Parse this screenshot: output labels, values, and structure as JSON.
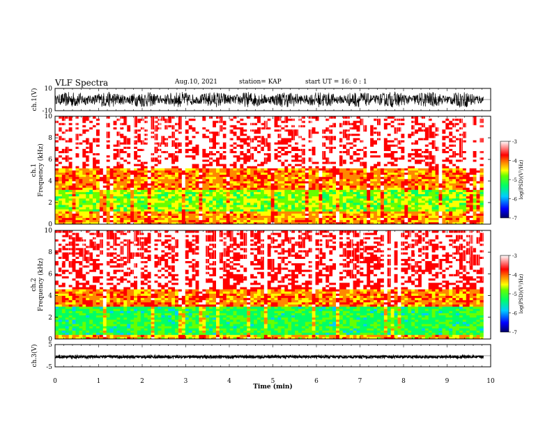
{
  "header": {
    "title": "VLF Spectra",
    "date": "Aug.10, 2021",
    "station": "station= KAP",
    "start": "start  UT  =   16: 0  : 1"
  },
  "chart_data": [
    {
      "type": "line",
      "name": "ch1-waveform",
      "ylabel": "ch.1(V)",
      "ylim": [
        -10,
        10
      ],
      "yticks": [
        "10",
        "-10"
      ],
      "xlim": [
        0,
        10
      ],
      "data_xmax": 9.83,
      "amplitude_range": [
        -8,
        8
      ]
    },
    {
      "type": "heatmap",
      "name": "ch1-spectrogram",
      "ylabel": "ch.1  Frequency  (kHz)",
      "ylim": [
        0,
        10
      ],
      "yticks": [
        "0",
        "2",
        "4",
        "6",
        "8",
        "10"
      ],
      "xlim": [
        0,
        10
      ],
      "data_xmax": 9.83,
      "bands": [
        {
          "from": 0,
          "to": 1.2,
          "level": -4.2
        },
        {
          "from": 1.2,
          "to": 3.2,
          "level": -4.8
        },
        {
          "from": 3.2,
          "to": 5.2,
          "level": -4.1
        },
        {
          "from": 5.2,
          "to": 10,
          "level": -3.3
        }
      ],
      "colorbar": {
        "label": "log(PSD)(V²/Hz)",
        "range": [
          -7,
          -3
        ],
        "ticks": [
          "-3",
          "-4",
          "-5",
          "-6",
          "-7"
        ]
      }
    },
    {
      "type": "heatmap",
      "name": "ch2-spectrogram",
      "ylabel": "ch.2  Frequency  (kHz)",
      "ylim": [
        0,
        10
      ],
      "yticks": [
        "0",
        "2",
        "4",
        "6",
        "8",
        "10"
      ],
      "xlim": [
        0,
        10
      ],
      "data_xmax": 9.83,
      "bands": [
        {
          "from": 0,
          "to": 0.5,
          "level": -4.3
        },
        {
          "from": 0.5,
          "to": 3.0,
          "level": -5.2
        },
        {
          "from": 3.0,
          "to": 4.6,
          "level": -4.1
        },
        {
          "from": 4.6,
          "to": 10,
          "level": -3.4
        }
      ],
      "colorbar": {
        "label": "log(PSD)(V²/Hz)",
        "range": [
          -7,
          -3
        ],
        "ticks": [
          "-3",
          "-4",
          "-5",
          "-6",
          "-7"
        ]
      }
    },
    {
      "type": "line",
      "name": "ch3-waveform",
      "ylabel": "ch.3(V)",
      "ylim": [
        -5,
        5
      ],
      "yticks": [
        "5",
        "-5"
      ],
      "xlim": [
        0,
        10
      ],
      "data_xmax": 9.83,
      "amplitude_range": [
        -1,
        0
      ]
    }
  ],
  "xaxis": {
    "label": "Time  (min)",
    "ticks": [
      "0",
      "1",
      "2",
      "3",
      "4",
      "5",
      "6",
      "7",
      "8",
      "9",
      "10"
    ]
  },
  "colors": {
    "colormap": [
      "#000066",
      "#0000ff",
      "#00ccff",
      "#00ff66",
      "#66ff00",
      "#ffff00",
      "#ff8800",
      "#ff0000",
      "#ffffff"
    ]
  }
}
